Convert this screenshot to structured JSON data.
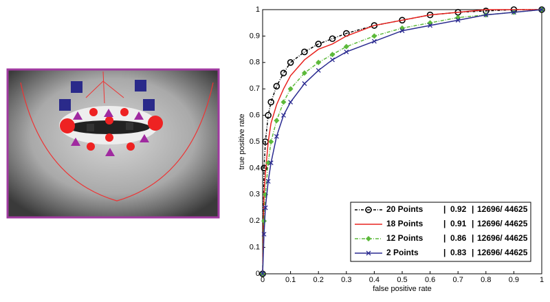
{
  "chart_data": {
    "type": "line",
    "x_label": "false positive rate",
    "y_label": "true positive rate",
    "x": [
      0,
      0.005,
      0.01,
      0.02,
      0.03,
      0.05,
      0.075,
      0.1,
      0.15,
      0.2,
      0.25,
      0.3,
      0.4,
      0.5,
      0.6,
      0.7,
      0.8,
      0.9,
      1
    ],
    "series": [
      {
        "name": "20 Points",
        "auc": 0.92,
        "count_label": "12696/ 44625",
        "color": "#000000",
        "marker": "circle",
        "dash": "4 2 1 2",
        "values": [
          0,
          0.4,
          0.5,
          0.6,
          0.65,
          0.71,
          0.76,
          0.8,
          0.84,
          0.87,
          0.89,
          0.91,
          0.94,
          0.96,
          0.98,
          0.99,
          0.995,
          1,
          1
        ]
      },
      {
        "name": "18 Points",
        "auc": 0.91,
        "count_label": "12696/ 44625",
        "color": "#e8221e",
        "marker": "none",
        "dash": "",
        "values": [
          0,
          0.3,
          0.38,
          0.5,
          0.57,
          0.64,
          0.7,
          0.75,
          0.81,
          0.85,
          0.87,
          0.9,
          0.94,
          0.96,
          0.98,
          0.99,
          1,
          1,
          1
        ]
      },
      {
        "name": "12 Points",
        "auc": 0.86,
        "count_label": "12696/ 44625",
        "color": "#5cb93a",
        "marker": "diamond",
        "dash": "5 2 1 2",
        "values": [
          0,
          0.2,
          0.3,
          0.42,
          0.5,
          0.58,
          0.65,
          0.7,
          0.76,
          0.8,
          0.83,
          0.86,
          0.9,
          0.93,
          0.95,
          0.97,
          0.98,
          0.99,
          1
        ]
      },
      {
        "name": "2  Points",
        "auc": 0.83,
        "count_label": "12696/ 44625",
        "color": "#2a2a90",
        "marker": "cross",
        "dash": "",
        "values": [
          0,
          0.15,
          0.25,
          0.35,
          0.42,
          0.52,
          0.6,
          0.65,
          0.72,
          0.77,
          0.81,
          0.84,
          0.88,
          0.92,
          0.94,
          0.96,
          0.98,
          0.99,
          1
        ]
      }
    ],
    "legend_separator": "|",
    "xlim": [
      0,
      1
    ],
    "ylim": [
      0,
      1
    ],
    "xticks": [
      0,
      0.1,
      0.2,
      0.3,
      0.4,
      0.5,
      0.6,
      0.7,
      0.8,
      0.9,
      1
    ],
    "yticks": [
      0,
      0.1,
      0.2,
      0.3,
      0.4,
      0.5,
      0.6,
      0.7,
      0.8,
      0.9,
      1
    ],
    "legend_position": "lower right",
    "grid": false
  }
}
